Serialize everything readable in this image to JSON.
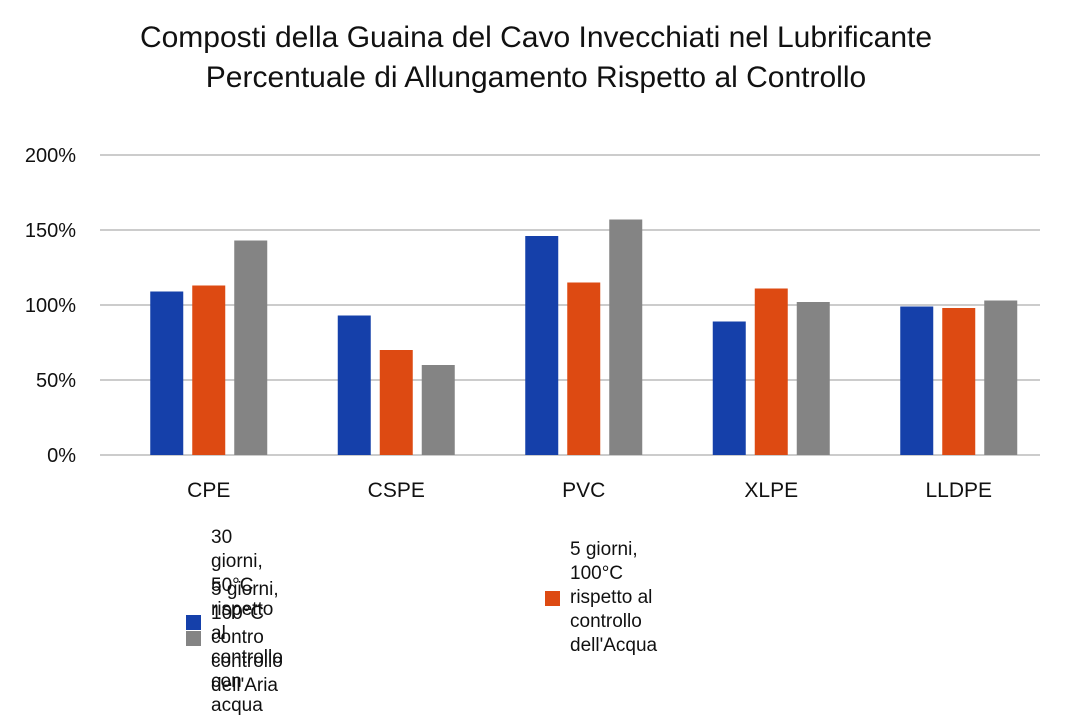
{
  "chart_data": {
    "type": "bar",
    "title": "Composti della Guaina del Cavo Invecchiati nel Lubrificante",
    "subtitle": "Percentuale di Allungamento Rispetto al Controllo",
    "categories": [
      "CPE",
      "CSPE",
      "PVC",
      "XLPE",
      "LLDPE"
    ],
    "ylim": [
      0,
      200
    ],
    "yticks": [
      0,
      50,
      100,
      150,
      200
    ],
    "ytick_labels": [
      "0%",
      "50%",
      "100%",
      "150%",
      "200%"
    ],
    "grid": true,
    "legend_position": "bottom",
    "series": [
      {
        "name": "30 giorni, 50°C rispetto al controllo con acqua",
        "color": "#1540aa",
        "values": [
          109,
          93,
          146,
          89,
          99
        ]
      },
      {
        "name": "5 giorni, 100°C rispetto al controllo dell'Acqua",
        "color": "#dd4a12",
        "values": [
          113,
          70,
          115,
          111,
          98
        ]
      },
      {
        "name": "5 giorni, 100°C contro controllo dell'Aria",
        "color": "#848484",
        "values": [
          143,
          60,
          157,
          102,
          103
        ]
      }
    ]
  },
  "legend": {
    "items": [
      {
        "line1": "30 giorni, 50°C rispetto al",
        "line2": "controllo con acqua"
      },
      {
        "line1": "5 giorni, 100°C rispetto al",
        "line2": "controllo dell'Acqua"
      },
      {
        "line1": "5 giorni, 100°C contro",
        "line2": "controllo dell'Aria"
      }
    ]
  }
}
